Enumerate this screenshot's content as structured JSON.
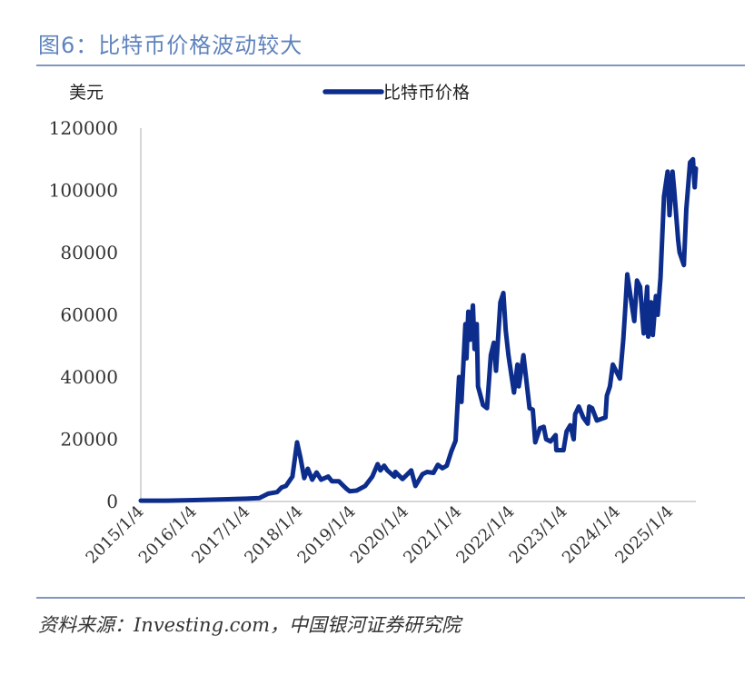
{
  "header": {
    "title": "图6：比特币价格波动较大"
  },
  "footer": {
    "source": "资料来源：Investing.com，中国银河证券研究院"
  },
  "colors": {
    "accent": "#5f83bd",
    "rule": "#8296bf",
    "series": "#0d2d8c",
    "axis": "#c8c8c8"
  },
  "chart_data": {
    "type": "line",
    "title": "",
    "ylabel": "美元",
    "xlabel": "",
    "legend": {
      "position": "top",
      "entries": [
        "比特币价格"
      ]
    },
    "grid": false,
    "ylim": [
      0,
      120000
    ],
    "yticks": [
      "0",
      "20000",
      "40000",
      "60000",
      "80000",
      "100000",
      "120000"
    ],
    "xticks": [
      "2015/1/4",
      "2016/1/4",
      "2017/1/4",
      "2018/1/4",
      "2019/1/4",
      "2020/1/4",
      "2021/1/4",
      "2022/1/4",
      "2023/1/4",
      "2024/1/4",
      "2025/1/4"
    ],
    "x_range": [
      "2015/1/4",
      "2025/6/30"
    ],
    "series": [
      {
        "name": "比特币价格",
        "points": [
          [
            "2015/1/4",
            270
          ],
          [
            "2015/7/1",
            260
          ],
          [
            "2016/1/4",
            430
          ],
          [
            "2016/7/1",
            650
          ],
          [
            "2017/1/4",
            900
          ],
          [
            "2017/4/1",
            1100
          ],
          [
            "2017/6/1",
            2500
          ],
          [
            "2017/8/1",
            3000
          ],
          [
            "2017/9/1",
            4500
          ],
          [
            "2017/10/1",
            5000
          ],
          [
            "2017/11/15",
            8000
          ],
          [
            "2017/12/17",
            19000
          ],
          [
            "2018/1/10",
            14000
          ],
          [
            "2018/2/5",
            7500
          ],
          [
            "2018/3/1",
            10500
          ],
          [
            "2018/4/1",
            7000
          ],
          [
            "2018/5/1",
            9300
          ],
          [
            "2018/6/1",
            7000
          ],
          [
            "2018/7/20",
            8000
          ],
          [
            "2018/8/15",
            6500
          ],
          [
            "2018/10/1",
            6500
          ],
          [
            "2018/11/25",
            4000
          ],
          [
            "2018/12/15",
            3300
          ],
          [
            "2019/2/1",
            3500
          ],
          [
            "2019/4/1",
            5000
          ],
          [
            "2019/5/20",
            8000
          ],
          [
            "2019/6/26",
            12000
          ],
          [
            "2019/7/15",
            10000
          ],
          [
            "2019/8/10",
            11500
          ],
          [
            "2019/9/1",
            10000
          ],
          [
            "2019/10/20",
            8000
          ],
          [
            "2019/10/27",
            9500
          ],
          [
            "2019/12/15",
            7200
          ],
          [
            "2020/2/13",
            10000
          ],
          [
            "2020/3/13",
            5000
          ],
          [
            "2020/5/1",
            8800
          ],
          [
            "2020/6/1",
            9500
          ],
          [
            "2020/7/15",
            9200
          ],
          [
            "2020/8/15",
            11800
          ],
          [
            "2020/9/15",
            10700
          ],
          [
            "2020/10/15",
            11500
          ],
          [
            "2020/11/15",
            16000
          ],
          [
            "2020/12/15",
            19500
          ],
          [
            "2021/1/8",
            40000
          ],
          [
            "2021/1/25",
            32000
          ],
          [
            "2021/2/21",
            57000
          ],
          [
            "2021/2/28",
            46000
          ],
          [
            "2021/3/13",
            61000
          ],
          [
            "2021/3/25",
            52000
          ],
          [
            "2021/4/14",
            63000
          ],
          [
            "2021/4/25",
            49000
          ],
          [
            "2021/5/10",
            57000
          ],
          [
            "2021/5/19",
            37000
          ],
          [
            "2021/6/22",
            31000
          ],
          [
            "2021/7/20",
            30000
          ],
          [
            "2021/8/15",
            47000
          ],
          [
            "2021/9/5",
            51000
          ],
          [
            "2021/9/20",
            42000
          ],
          [
            "2021/10/20",
            64000
          ],
          [
            "2021/11/10",
            67000
          ],
          [
            "2021/11/26",
            55000
          ],
          [
            "2021/12/15",
            47000
          ],
          [
            "2022/1/22",
            35000
          ],
          [
            "2022/2/15",
            44000
          ],
          [
            "2022/2/24",
            37000
          ],
          [
            "2022/3/28",
            47000
          ],
          [
            "2022/4/15",
            40000
          ],
          [
            "2022/5/9",
            30000
          ],
          [
            "2022/6/1",
            29500
          ],
          [
            "2022/6/18",
            19000
          ],
          [
            "2022/7/20",
            23500
          ],
          [
            "2022/8/15",
            24000
          ],
          [
            "2022/9/1",
            20000
          ],
          [
            "2022/10/1",
            19300
          ],
          [
            "2022/11/5",
            21300
          ],
          [
            "2022/11/10",
            16500
          ],
          [
            "2022/12/30",
            16500
          ],
          [
            "2023/1/20",
            22500
          ],
          [
            "2023/2/15",
            24500
          ],
          [
            "2023/3/10",
            20000
          ],
          [
            "2023/3/20",
            28000
          ],
          [
            "2023/4/14",
            30500
          ],
          [
            "2023/5/15",
            27000
          ],
          [
            "2023/6/15",
            25000
          ],
          [
            "2023/6/25",
            30500
          ],
          [
            "2023/7/15",
            30000
          ],
          [
            "2023/8/17",
            26000
          ],
          [
            "2023/9/15",
            26500
          ],
          [
            "2023/10/15",
            27000
          ],
          [
            "2023/10/25",
            34000
          ],
          [
            "2023/11/15",
            37000
          ],
          [
            "2023/12/5",
            44000
          ],
          [
            "2024/1/23",
            39500
          ],
          [
            "2024/2/15",
            52000
          ],
          [
            "2024/2/29",
            62000
          ],
          [
            "2024/3/14",
            73000
          ],
          [
            "2024/4/15",
            63000
          ],
          [
            "2024/5/1",
            58000
          ],
          [
            "2024/5/20",
            71000
          ],
          [
            "2024/6/10",
            69000
          ],
          [
            "2024/7/5",
            54000
          ],
          [
            "2024/7/29",
            69000
          ],
          [
            "2024/8/5",
            53000
          ],
          [
            "2024/8/25",
            64000
          ],
          [
            "2024/9/6",
            53500
          ],
          [
            "2024/9/27",
            66000
          ],
          [
            "2024/10/10",
            60000
          ],
          [
            "2024/10/29",
            72000
          ],
          [
            "2024/11/22",
            98000
          ],
          [
            "2024/12/17",
            106000
          ],
          [
            "2024/12/30",
            92000
          ],
          [
            "2025/1/20",
            106000
          ],
          [
            "2025/2/1",
            100000
          ],
          [
            "2025/2/28",
            84000
          ],
          [
            "2025/3/10",
            80000
          ],
          [
            "2025/4/8",
            76000
          ],
          [
            "2025/4/25",
            94000
          ],
          [
            "2025/5/21",
            109000
          ],
          [
            "2025/6/10",
            110000
          ],
          [
            "2025/6/22",
            101000
          ],
          [
            "2025/6/30",
            107000
          ]
        ]
      }
    ]
  }
}
